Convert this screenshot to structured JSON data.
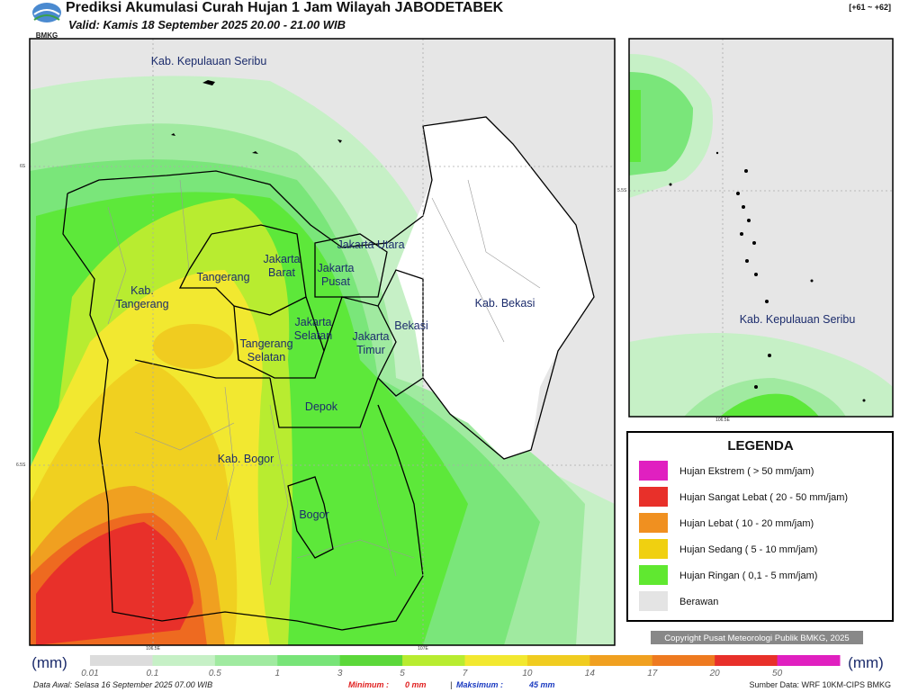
{
  "header": {
    "title": "Prediksi Akumulasi Curah Hujan 1 Jam Wilayah JABODETABEK",
    "subtitle": "Valid: Kamis 18 September 2025 20.00 - 21.00 WIB",
    "logo": "BMKG",
    "range": "[+61 ~ +62]"
  },
  "map": {
    "labels": [
      {
        "lines": [
          "Kab. Kepulauan Seribu"
        ]
      },
      {
        "lines": [
          "Kab.",
          "Tangerang"
        ]
      },
      {
        "lines": [
          "Tangerang"
        ]
      },
      {
        "lines": [
          "Jakarta",
          "Barat"
        ]
      },
      {
        "lines": [
          "Jakarta Utara"
        ]
      },
      {
        "lines": [
          "Jakarta",
          "Pusat"
        ]
      },
      {
        "lines": [
          "Jakarta",
          "Selatan"
        ]
      },
      {
        "lines": [
          "Jakarta",
          "Timur"
        ]
      },
      {
        "lines": [
          "Tangerang",
          "Selatan"
        ]
      },
      {
        "lines": [
          "Bekasi"
        ]
      },
      {
        "lines": [
          "Kab. Bekasi"
        ]
      },
      {
        "lines": [
          "Depok"
        ]
      },
      {
        "lines": [
          "Kab. Bogor"
        ]
      },
      {
        "lines": [
          "Bogor"
        ]
      }
    ],
    "axis": [
      "6S",
      "6.5S",
      "106.5E",
      "107E"
    ]
  },
  "inset": {
    "label": "Kab. Kepulauan Seribu",
    "axis": [
      "5.5S",
      "106.5E"
    ]
  },
  "legend": {
    "title": "LEGENDA",
    "items": [
      "Hujan Ekstrem ( > 50 mm/jam)",
      "Hujan Sangat Lebat ( 20 - 50 mm/jam)",
      "Hujan Lebat ( 10 - 20 mm/jam)",
      "Hujan Sedang ( 5 - 10 mm/jam)",
      "Hujan Ringan ( 0,1 - 5 mm/jam)",
      "Berawan"
    ]
  },
  "copyright": "Copyright Pusat Meteorologi Publik BMKG, 2025",
  "colorbar": {
    "unit": "(mm)",
    "labels": [
      "0.01",
      "0.1",
      "0.5",
      "1",
      "3",
      "5",
      "7",
      "10",
      "14",
      "17",
      "20",
      "50"
    ]
  },
  "footer": {
    "data_awal": "Data Awal: Selasa 16 September 2025 07.00 WIB",
    "min_label": "Minimum :",
    "min_value": "0 mm",
    "separator": "|",
    "max_label": "Maksimum :",
    "max_value": "45 mm",
    "source": "Sumber Data: WRF 10KM-CIPS BMKG"
  }
}
